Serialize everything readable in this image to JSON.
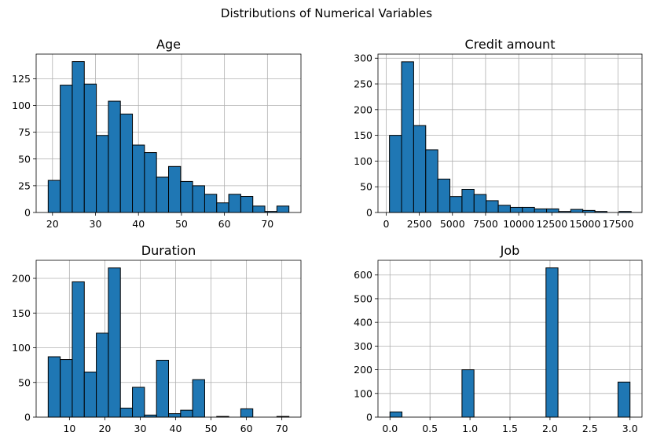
{
  "figure": {
    "title": "Distributions of Numerical Variables"
  },
  "chart_data": [
    {
      "type": "bar",
      "title": "Age",
      "xlabel": "",
      "ylabel": "",
      "grid": true,
      "bar_color": "#1f77b4",
      "edge_color": "#000000",
      "xlim": [
        16.2,
        77.8
      ],
      "ylim": [
        0,
        148
      ],
      "xticks": [
        "20",
        "30",
        "40",
        "50",
        "60",
        "70"
      ],
      "xtick_values": [
        20,
        30,
        40,
        50,
        60,
        70
      ],
      "yticks": [
        "0",
        "25",
        "50",
        "75",
        "100",
        "125"
      ],
      "ytick_values": [
        0,
        25,
        50,
        75,
        100,
        125
      ],
      "bin_edges": [
        19,
        21.8,
        24.6,
        27.4,
        30.2,
        33,
        35.8,
        38.6,
        41.4,
        44.2,
        47,
        49.8,
        52.6,
        55.4,
        58.2,
        61,
        63.8,
        66.6,
        69.4,
        72.2,
        75
      ],
      "values": [
        30,
        119,
        141,
        120,
        72,
        104,
        92,
        63,
        56,
        33,
        43,
        29,
        25,
        17,
        9,
        17,
        15,
        6,
        1,
        6
      ]
    },
    {
      "type": "bar",
      "title": "Credit amount",
      "xlabel": "",
      "ylabel": "",
      "grid": true,
      "bar_color": "#1f77b4",
      "edge_color": "#000000",
      "xlim": [
        -618,
        19300
      ],
      "ylim": [
        0,
        308
      ],
      "xticks": [
        "0",
        "2500",
        "5000",
        "7500",
        "10000",
        "12500",
        "15000",
        "17500"
      ],
      "xtick_values": [
        0,
        2500,
        5000,
        7500,
        10000,
        12500,
        15000,
        17500
      ],
      "yticks": [
        "0",
        "50",
        "100",
        "150",
        "200",
        "250",
        "300"
      ],
      "ytick_values": [
        0,
        50,
        100,
        150,
        200,
        250,
        300
      ],
      "bin_edges": [
        250,
        1161.7,
        2073.4,
        2985.1,
        3896.8,
        4808.5,
        5720.2,
        6631.9,
        7543.6,
        8455.3,
        9367,
        10278.7,
        11190.4,
        12102.1,
        13013.8,
        13925.5,
        14837.2,
        15748.9,
        16660.6,
        17572.3,
        18484
      ],
      "values": [
        150,
        293,
        169,
        122,
        65,
        31,
        45,
        35,
        23,
        14,
        10,
        10,
        7,
        7,
        2,
        6,
        4,
        2,
        0,
        2
      ]
    },
    {
      "type": "bar",
      "title": "Duration",
      "xlabel": "",
      "ylabel": "",
      "grid": true,
      "bar_color": "#1f77b4",
      "edge_color": "#000000",
      "xlim": [
        0.6,
        75.4
      ],
      "ylim": [
        0,
        226
      ],
      "xticks": [
        "10",
        "20",
        "30",
        "40",
        "50",
        "60",
        "70"
      ],
      "xtick_values": [
        10,
        20,
        30,
        40,
        50,
        60,
        70
      ],
      "yticks": [
        "0",
        "50",
        "100",
        "150",
        "200"
      ],
      "ytick_values": [
        0,
        50,
        100,
        150,
        200
      ],
      "bin_edges": [
        4,
        7.4,
        10.8,
        14.2,
        17.6,
        21,
        24.4,
        27.8,
        31.2,
        34.6,
        38,
        41.4,
        44.8,
        48.2,
        51.6,
        55,
        58.4,
        61.8,
        65.2,
        68.6,
        72
      ],
      "values": [
        87,
        83,
        195,
        65,
        121,
        215,
        13,
        43,
        3,
        82,
        5,
        10,
        54,
        0,
        1,
        0,
        12,
        0,
        0,
        1
      ]
    },
    {
      "type": "bar",
      "title": "Job",
      "xlabel": "",
      "ylabel": "",
      "grid": true,
      "bar_color": "#1f77b4",
      "edge_color": "#000000",
      "xlim": [
        -0.15,
        3.15
      ],
      "ylim": [
        0,
        662
      ],
      "xticks": [
        "0.0",
        "0.5",
        "1.0",
        "1.5",
        "2.0",
        "2.5",
        "3.0"
      ],
      "xtick_values": [
        0,
        0.5,
        1,
        1.5,
        2,
        2.5,
        3
      ],
      "yticks": [
        "0",
        "100",
        "200",
        "300",
        "400",
        "500",
        "600"
      ],
      "ytick_values": [
        0,
        100,
        200,
        300,
        400,
        500,
        600
      ],
      "bin_edges": [
        0,
        0.15,
        0.3,
        0.45,
        0.6,
        0.75,
        0.9,
        1.05,
        1.2,
        1.35,
        1.5,
        1.65,
        1.8,
        1.95,
        2.1,
        2.25,
        2.4,
        2.55,
        2.7,
        2.85,
        3
      ],
      "values": [
        22,
        0,
        0,
        0,
        0,
        0,
        200,
        0,
        0,
        0,
        0,
        0,
        0,
        630,
        0,
        0,
        0,
        0,
        0,
        148
      ]
    }
  ]
}
